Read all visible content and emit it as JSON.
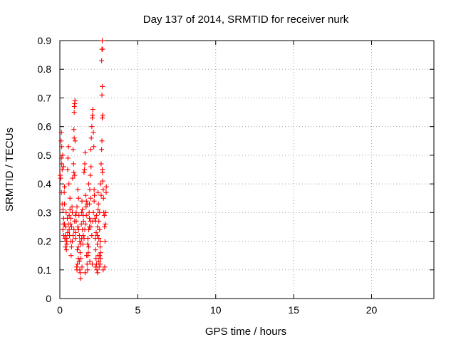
{
  "chart_data": {
    "type": "scatter",
    "title": "Day 137 of 2014, SRMTID for receiver nurk",
    "xlabel": "GPS time / hours",
    "ylabel": "SRMTID / TECUs",
    "xlim": [
      0,
      24
    ],
    "ylim": [
      0,
      0.9
    ],
    "xticks": [
      "0",
      "5",
      "10",
      "15",
      "20"
    ],
    "yticks": [
      "0",
      "0.1",
      "0.2",
      "0.3",
      "0.4",
      "0.5",
      "0.6",
      "0.7",
      "0.8",
      "0.9"
    ],
    "grid": true,
    "marker": "plus",
    "point_color": "#ff0000",
    "series": [
      {
        "name": "SRMTID",
        "points": [
          [
            0.02,
            0.43
          ],
          [
            0.05,
            0.42
          ],
          [
            0.08,
            0.55
          ],
          [
            0.1,
            0.58
          ],
          [
            0.12,
            0.53
          ],
          [
            0.15,
            0.45
          ],
          [
            0.18,
            0.5
          ],
          [
            0.2,
            0.24
          ],
          [
            0.22,
            0.26
          ],
          [
            0.25,
            0.22
          ],
          [
            0.28,
            0.37
          ],
          [
            0.3,
            0.33
          ],
          [
            0.32,
            0.21
          ],
          [
            0.35,
            0.18
          ],
          [
            0.38,
            0.25
          ],
          [
            0.4,
            0.3
          ],
          [
            0.42,
            0.17
          ],
          [
            0.45,
            0.19
          ],
          [
            0.48,
            0.28
          ],
          [
            0.5,
            0.45
          ],
          [
            0.52,
            0.49
          ],
          [
            0.55,
            0.53
          ],
          [
            0.58,
            0.4
          ],
          [
            0.6,
            0.24
          ],
          [
            0.62,
            0.22
          ],
          [
            0.65,
            0.35
          ],
          [
            0.68,
            0.26
          ],
          [
            0.7,
            0.2
          ],
          [
            0.72,
            0.15
          ],
          [
            0.75,
            0.25
          ],
          [
            0.78,
            0.32
          ],
          [
            0.8,
            0.3
          ],
          [
            0.82,
            0.42
          ],
          [
            0.85,
            0.52
          ],
          [
            0.88,
            0.47
          ],
          [
            0.9,
            0.59
          ],
          [
            0.92,
            0.65
          ],
          [
            0.93,
            0.67
          ],
          [
            0.95,
            0.68
          ],
          [
            0.97,
            0.69
          ],
          [
            0.9,
            0.44
          ],
          [
            0.92,
            0.56
          ],
          [
            0.95,
            0.43
          ],
          [
            0.98,
            0.55
          ],
          [
            0.1,
            0.49
          ],
          [
            0.12,
            0.47
          ],
          [
            0.25,
            0.46
          ],
          [
            0.3,
            0.39
          ],
          [
            1.0,
            0.21
          ],
          [
            1.02,
            0.23
          ],
          [
            1.05,
            0.27
          ],
          [
            1.08,
            0.11
          ],
          [
            1.1,
            0.1
          ],
          [
            1.12,
            0.17
          ],
          [
            1.15,
            0.25
          ],
          [
            1.18,
            0.18
          ],
          [
            1.2,
            0.24
          ],
          [
            1.22,
            0.29
          ],
          [
            1.25,
            0.22
          ],
          [
            1.28,
            0.2
          ],
          [
            1.3,
            0.09
          ],
          [
            1.32,
            0.07
          ],
          [
            1.35,
            0.14
          ],
          [
            1.38,
            0.26
          ],
          [
            1.4,
            0.3
          ],
          [
            1.42,
            0.34
          ],
          [
            1.45,
            0.31
          ],
          [
            1.48,
            0.19
          ],
          [
            1.5,
            0.22
          ],
          [
            1.52,
            0.27
          ],
          [
            1.55,
            0.44
          ],
          [
            1.58,
            0.45
          ],
          [
            1.6,
            0.47
          ],
          [
            1.62,
            0.51
          ],
          [
            1.65,
            0.36
          ],
          [
            1.68,
            0.32
          ],
          [
            1.7,
            0.34
          ],
          [
            1.72,
            0.15
          ],
          [
            1.75,
            0.12
          ],
          [
            1.78,
            0.19
          ],
          [
            1.8,
            0.21
          ],
          [
            1.82,
            0.16
          ],
          [
            1.85,
            0.24
          ],
          [
            1.88,
            0.3
          ],
          [
            1.9,
            0.33
          ],
          [
            1.92,
            0.38
          ],
          [
            1.95,
            0.43
          ],
          [
            1.98,
            0.52
          ],
          [
            2.0,
            0.46
          ],
          [
            2.02,
            0.56
          ],
          [
            2.05,
            0.6
          ],
          [
            2.08,
            0.63
          ],
          [
            2.1,
            0.64
          ],
          [
            2.12,
            0.66
          ],
          [
            2.15,
            0.58
          ],
          [
            2.18,
            0.53
          ],
          [
            2.2,
            0.38
          ],
          [
            2.22,
            0.36
          ],
          [
            2.25,
            0.28
          ],
          [
            2.28,
            0.21
          ],
          [
            2.3,
            0.17
          ],
          [
            2.32,
            0.14
          ],
          [
            2.35,
            0.12
          ],
          [
            2.38,
            0.1
          ],
          [
            2.4,
            0.19
          ],
          [
            2.42,
            0.25
          ],
          [
            2.45,
            0.31
          ],
          [
            2.48,
            0.33
          ],
          [
            2.5,
            0.13
          ],
          [
            2.52,
            0.11
          ],
          [
            2.55,
            0.15
          ],
          [
            2.58,
            0.18
          ],
          [
            2.6,
            0.2
          ],
          [
            2.62,
            0.16
          ],
          [
            2.65,
            0.47
          ],
          [
            2.68,
            0.52
          ],
          [
            2.7,
            0.55
          ],
          [
            2.72,
            0.45
          ],
          [
            2.73,
            0.44
          ],
          [
            2.75,
            0.41
          ],
          [
            2.78,
            0.38
          ],
          [
            2.8,
            0.35
          ],
          [
            2.82,
            0.3
          ],
          [
            2.85,
            0.29
          ],
          [
            2.87,
            0.25
          ],
          [
            2.88,
            0.11
          ],
          [
            2.9,
            0.2
          ],
          [
            2.92,
            0.26
          ],
          [
            2.95,
            0.3
          ],
          [
            2.97,
            0.37
          ],
          [
            2.98,
            0.39
          ],
          [
            2.72,
            0.63
          ],
          [
            2.75,
            0.64
          ],
          [
            2.7,
            0.71
          ],
          [
            2.72,
            0.74
          ],
          [
            2.68,
            0.83
          ],
          [
            2.7,
            0.87
          ],
          [
            2.74,
            0.87
          ],
          [
            2.72,
            0.9
          ],
          [
            2.78,
            0.1
          ],
          [
            2.45,
            0.15
          ],
          [
            2.5,
            0.21
          ],
          [
            2.55,
            0.24
          ],
          [
            2.4,
            0.22
          ],
          [
            2.35,
            0.29
          ],
          [
            2.33,
            0.23
          ],
          [
            2.3,
            0.27
          ],
          [
            2.2,
            0.34
          ],
          [
            2.15,
            0.3
          ],
          [
            2.1,
            0.27
          ],
          [
            2.05,
            0.22
          ],
          [
            2.0,
            0.25
          ],
          [
            1.95,
            0.27
          ],
          [
            1.9,
            0.25
          ],
          [
            1.85,
            0.18
          ],
          [
            1.8,
            0.15
          ],
          [
            1.75,
            0.33
          ],
          [
            1.7,
            0.29
          ],
          [
            1.65,
            0.26
          ],
          [
            1.6,
            0.24
          ],
          [
            1.55,
            0.21
          ],
          [
            1.5,
            0.29
          ],
          [
            1.45,
            0.24
          ],
          [
            1.4,
            0.21
          ],
          [
            1.35,
            0.19
          ],
          [
            1.3,
            0.16
          ],
          [
            1.25,
            0.13
          ],
          [
            1.2,
            0.35
          ],
          [
            1.15,
            0.38
          ],
          [
            1.1,
            0.32
          ],
          [
            1.05,
            0.3
          ],
          [
            1.0,
            0.29
          ],
          [
            0.95,
            0.27
          ],
          [
            0.9,
            0.24
          ],
          [
            0.85,
            0.22
          ],
          [
            0.8,
            0.2
          ],
          [
            0.75,
            0.18
          ],
          [
            0.7,
            0.28
          ],
          [
            0.65,
            0.31
          ],
          [
            0.6,
            0.29
          ],
          [
            0.55,
            0.26
          ],
          [
            0.5,
            0.23
          ],
          [
            0.45,
            0.21
          ],
          [
            0.4,
            0.2
          ],
          [
            0.35,
            0.22
          ],
          [
            0.3,
            0.26
          ],
          [
            0.25,
            0.28
          ],
          [
            0.2,
            0.31
          ],
          [
            0.15,
            0.33
          ],
          [
            0.1,
            0.37
          ],
          [
            1.12,
            0.12
          ],
          [
            1.18,
            0.14
          ],
          [
            1.28,
            0.1
          ],
          [
            1.42,
            0.11
          ],
          [
            1.62,
            0.09
          ],
          [
            1.78,
            0.1
          ],
          [
            1.92,
            0.13
          ],
          [
            2.08,
            0.12
          ],
          [
            2.28,
            0.11
          ],
          [
            2.42,
            0.09
          ],
          [
            2.58,
            0.12
          ],
          [
            2.62,
            0.14
          ],
          [
            2.55,
            0.3
          ],
          [
            2.5,
            0.27
          ],
          [
            2.45,
            0.37
          ],
          [
            2.6,
            0.4
          ],
          [
            2.65,
            0.36
          ],
          [
            1.85,
            0.4
          ],
          [
            1.9,
            0.28
          ],
          [
            1.97,
            0.35
          ]
        ]
      }
    ]
  }
}
